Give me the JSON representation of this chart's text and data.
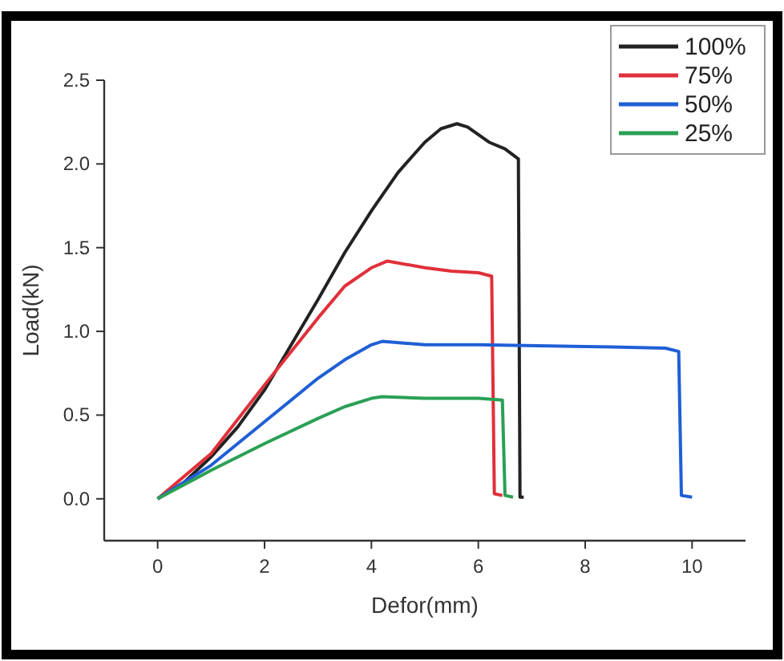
{
  "chart_data": {
    "type": "line",
    "xlabel": "Defor(mm)",
    "ylabel": "Load(kN)",
    "xlim": [
      -1,
      11
    ],
    "xticks": [
      0,
      2,
      4,
      6,
      8,
      10
    ],
    "ylim": [
      -0.25,
      2.5
    ],
    "yticks": [
      {
        "value": 0,
        "label": "0.0"
      },
      {
        "value": 0.5,
        "label": "0.5"
      },
      {
        "value": 1,
        "label": "1.0"
      },
      {
        "value": 1.5,
        "label": "1.5"
      },
      {
        "value": 2,
        "label": "2.0"
      },
      {
        "value": 2.5,
        "label": "2.5"
      }
    ],
    "legend": "top right",
    "line_style": "solid",
    "grid": false,
    "series": [
      {
        "name": "100%",
        "color": "#222222",
        "x": [
          0,
          0.5,
          1,
          1.5,
          2,
          2.5,
          3,
          3.5,
          4,
          4.5,
          5,
          5.3,
          5.6,
          5.8,
          6.2,
          6.5,
          6.75,
          6.78,
          6.85
        ],
        "values": [
          0,
          0.1,
          0.25,
          0.43,
          0.65,
          0.92,
          1.19,
          1.47,
          1.72,
          1.95,
          2.13,
          2.21,
          2.24,
          2.22,
          2.13,
          2.09,
          2.03,
          0.01,
          0.01
        ]
      },
      {
        "name": "75%",
        "color": "#e0303a",
        "x": [
          0,
          1,
          2,
          3,
          3.5,
          4,
          4.3,
          5,
          5.5,
          6,
          6.25,
          6.3,
          6.45
        ],
        "values": [
          0,
          0.27,
          0.68,
          1.08,
          1.27,
          1.38,
          1.42,
          1.38,
          1.36,
          1.35,
          1.33,
          0.03,
          0.02
        ]
      },
      {
        "name": "50%",
        "color": "#1f5fd6",
        "x": [
          0,
          1,
          2,
          3,
          3.5,
          4,
          4.2,
          5,
          6,
          8,
          9.5,
          9.75,
          9.8,
          10
        ],
        "values": [
          0,
          0.2,
          0.46,
          0.72,
          0.83,
          0.92,
          0.94,
          0.92,
          0.92,
          0.91,
          0.9,
          0.88,
          0.02,
          0.01
        ]
      },
      {
        "name": "25%",
        "color": "#2aa055",
        "x": [
          0,
          1,
          2,
          3,
          3.5,
          4,
          4.2,
          5,
          6,
          6.45,
          6.5,
          6.65
        ],
        "values": [
          0,
          0.17,
          0.33,
          0.48,
          0.55,
          0.6,
          0.61,
          0.6,
          0.6,
          0.59,
          0.02,
          0.01
        ]
      }
    ]
  }
}
